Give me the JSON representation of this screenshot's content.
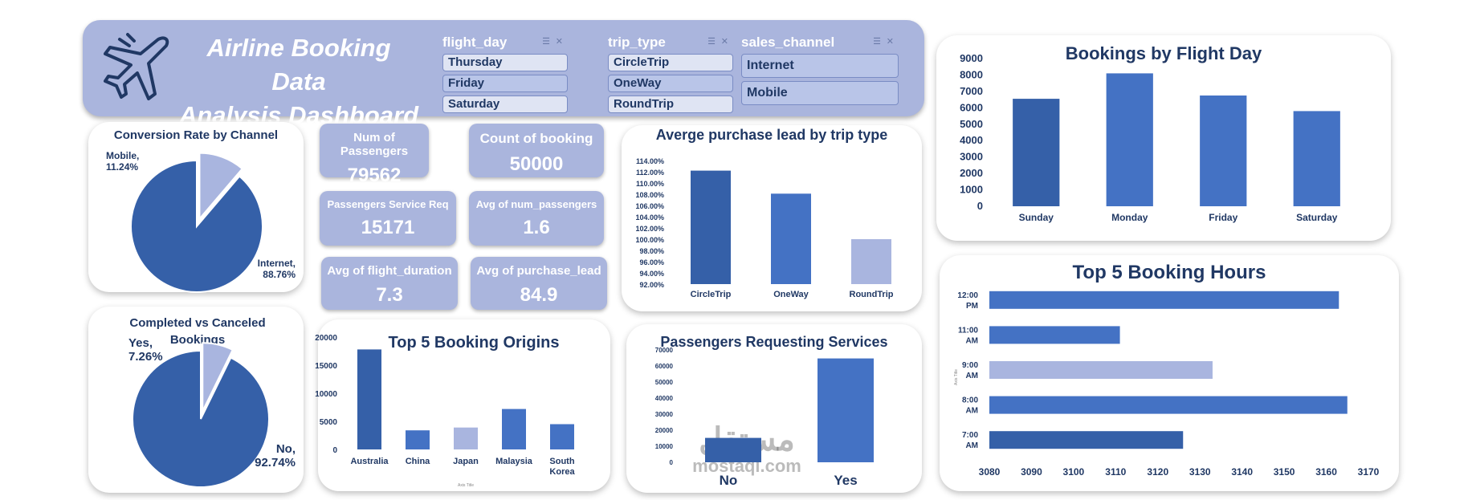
{
  "header": {
    "title_line1": "Airline Booking Data",
    "title_line2": "Analysis Dashboard"
  },
  "slicers": {
    "flight_day": {
      "title": "flight_day",
      "items": [
        "Thursday",
        "Friday",
        "Saturday"
      ],
      "selected": [
        "Friday"
      ]
    },
    "trip_type": {
      "title": "trip_type",
      "items": [
        "CircleTrip",
        "OneWay",
        "RoundTrip"
      ],
      "selected": [
        "OneWay"
      ]
    },
    "sales_channel": {
      "title": "sales_channel",
      "items": [
        "Internet",
        "Mobile"
      ],
      "selected": [
        "Internet",
        "Mobile"
      ]
    }
  },
  "kpis": {
    "passengers": {
      "label": "Num of Passengers",
      "value": "79562"
    },
    "bookings": {
      "label": "Count of booking",
      "value": "50000"
    },
    "service_req": {
      "label": "Passengers Service Req",
      "value": "15171"
    },
    "avg_num_passengers": {
      "label": "Avg of num_passengers",
      "value": "1.6"
    },
    "avg_flight_duration": {
      "label": "Avg of flight_duration",
      "value": "7.3"
    },
    "avg_purchase_lead": {
      "label": "Avg of purchase_lead",
      "value": "84.9"
    }
  },
  "watermark": {
    "line1": "مستقل",
    "line2": "mostaql.com"
  },
  "colors": {
    "dark": "#3560a8",
    "mid": "#4472c4",
    "light": "#a9b5df",
    "title": "#203864",
    "header": "#aab5dd"
  },
  "chart_data": [
    {
      "id": "conversion",
      "type": "pie",
      "title": "Conversion Rate by Channel",
      "slices": [
        {
          "label": "Internet,",
          "pct_label": "88.76%",
          "value": 88.76
        },
        {
          "label": "Mobile,",
          "pct_label": "11.24%",
          "value": 11.24
        }
      ]
    },
    {
      "id": "completed",
      "type": "pie",
      "title": "Completed vs Canceled Bookings",
      "slices": [
        {
          "label": "No,",
          "pct_label": "92.74%",
          "value": 92.74
        },
        {
          "label": "Yes,",
          "pct_label": "7.26%",
          "value": 7.26
        }
      ]
    },
    {
      "id": "purchase_lead",
      "type": "bar",
      "title": "Averge purchase lead by trip type",
      "categories": [
        "CircleTrip",
        "OneWay",
        "RoundTrip"
      ],
      "values": [
        112.2,
        108.1,
        100.0
      ],
      "ylim": [
        92,
        114
      ],
      "yticks": [
        "92.00%",
        "94.00%",
        "96.00%",
        "98.00%",
        "100.00%",
        "102.00%",
        "104.00%",
        "106.00%",
        "108.00%",
        "110.00%",
        "112.00%",
        "114.00%"
      ]
    },
    {
      "id": "flight_day",
      "type": "bar",
      "title": "Bookings by Flight Day",
      "categories": [
        "Sunday",
        "Monday",
        "Friday",
        "Saturday"
      ],
      "values": [
        6550,
        8100,
        6750,
        5800
      ],
      "ylim": [
        0,
        9000
      ],
      "yticks": [
        "0",
        "1000",
        "2000",
        "3000",
        "4000",
        "5000",
        "6000",
        "7000",
        "8000",
        "9000"
      ]
    },
    {
      "id": "origins",
      "type": "bar",
      "title": "Top 5 Booking Origins",
      "categories": [
        "Australia",
        "China",
        "Japan",
        "Malaysia",
        "South Korea"
      ],
      "values": [
        17800,
        3400,
        3900,
        7200,
        4500
      ],
      "ylim": [
        0,
        20000
      ],
      "yticks": [
        "0",
        "5000",
        "10000",
        "15000",
        "20000"
      ],
      "xlabel": "Axis Title"
    },
    {
      "id": "services",
      "type": "bar",
      "title": "Passengers Requesting Services",
      "categories": [
        "No",
        "Yes"
      ],
      "values": [
        15200,
        64700
      ],
      "ylim": [
        0,
        70000
      ],
      "yticks": [
        "0",
        "10000",
        "20000",
        "30000",
        "40000",
        "50000",
        "60000",
        "70000"
      ]
    },
    {
      "id": "hours",
      "type": "bar",
      "orientation": "horizontal",
      "title": "Top 5 Booking Hours",
      "categories": [
        "12:00 PM",
        "11:00 AM",
        "9:00 AM",
        "8:00 AM",
        "7:00 AM"
      ],
      "values": [
        3163,
        3111,
        3133,
        3165,
        3126
      ],
      "xlim": [
        3080,
        3170
      ],
      "xticks": [
        "3080",
        "3090",
        "3100",
        "3110",
        "3120",
        "3130",
        "3140",
        "3150",
        "3160",
        "3170"
      ],
      "ylabel": "Axis Title"
    }
  ]
}
